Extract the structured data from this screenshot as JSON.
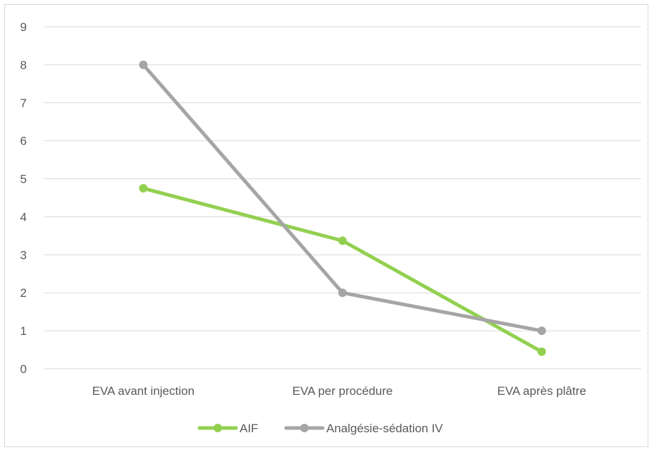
{
  "chart_data": {
    "type": "line",
    "categories": [
      "EVA avant injection",
      "EVA per procédure",
      "EVA après plâtre"
    ],
    "series": [
      {
        "name": "AIF",
        "values": [
          4.75,
          3.37,
          0.45
        ],
        "color": "#92d050"
      },
      {
        "name": "Analgésie-sédation IV",
        "values": [
          8,
          2,
          1
        ],
        "color": "#a5a5a5"
      }
    ],
    "y_ticks": [
      "0",
      "1",
      "2",
      "3",
      "4",
      "5",
      "6",
      "7",
      "8",
      "9"
    ],
    "ylim": [
      0,
      9
    ],
    "grid": true,
    "gridline_color": "#d9d9d9",
    "legend_position": "bottom",
    "title": "",
    "xlabel": "",
    "ylabel": ""
  }
}
